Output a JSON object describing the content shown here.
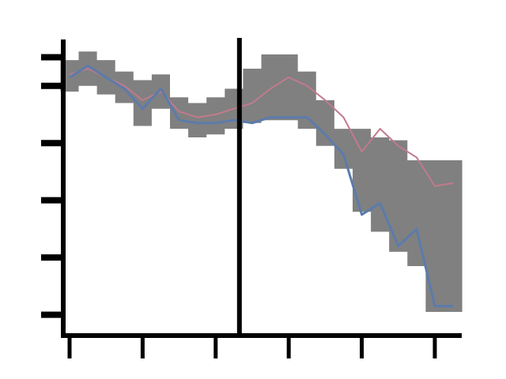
{
  "chart_data": {
    "type": "line",
    "title": "",
    "xlabel": "",
    "ylabel": "",
    "xlim": [
      0,
      21.3
    ],
    "ylim": [
      0.15,
      5.2
    ],
    "xticks": [
      0,
      4,
      8,
      12,
      16,
      20
    ],
    "yticks": [
      0.5,
      1.5,
      2.5,
      3.5,
      4.5,
      5.0
    ],
    "vertical_line_x": 9.3,
    "grid": false,
    "legend": "none",
    "colors": {
      "band": "#808080",
      "forecast_line": "#c07a8c",
      "observed_line": "#5b7bab",
      "axes": "#000000"
    },
    "series": [
      {
        "role": "confidence-band",
        "x": [
          0,
          1,
          2,
          3,
          4,
          5,
          6,
          7,
          8,
          9,
          10,
          11,
          12,
          13,
          14,
          15,
          16,
          17,
          18,
          19,
          20,
          21
        ],
        "lower": [
          4.4,
          4.5,
          4.35,
          4.2,
          3.8,
          4.1,
          3.75,
          3.6,
          3.65,
          3.75,
          3.85,
          3.9,
          3.9,
          3.75,
          3.45,
          3.05,
          2.3,
          1.95,
          1.6,
          1.35,
          0.55,
          0.55
        ],
        "upper": [
          4.95,
          5.1,
          4.95,
          4.75,
          4.6,
          4.7,
          4.3,
          4.2,
          4.3,
          4.45,
          4.8,
          5.05,
          5.05,
          4.75,
          4.25,
          3.75,
          3.75,
          3.6,
          3.55,
          3.2,
          3.2,
          3.2
        ]
      },
      {
        "role": "forecast-line",
        "x": [
          0,
          1,
          2,
          3,
          4,
          5,
          6,
          7,
          8,
          9,
          10,
          11,
          12,
          13,
          14,
          15,
          16,
          17,
          18,
          19,
          20,
          21
        ],
        "values": [
          4.7,
          4.8,
          4.65,
          4.5,
          4.25,
          4.4,
          4.05,
          3.95,
          4.0,
          4.1,
          4.2,
          4.45,
          4.65,
          4.5,
          4.25,
          3.95,
          3.35,
          3.75,
          3.45,
          3.25,
          2.75,
          2.8
        ]
      },
      {
        "role": "observed-line",
        "x": [
          0,
          1,
          2,
          3,
          4,
          5,
          6,
          7,
          8,
          9,
          10,
          11,
          12,
          13,
          14,
          15,
          16,
          17,
          18,
          19,
          20,
          21
        ],
        "values": [
          4.65,
          4.85,
          4.65,
          4.45,
          4.1,
          4.45,
          3.9,
          3.85,
          3.85,
          3.9,
          3.85,
          3.95,
          3.95,
          3.95,
          3.65,
          3.3,
          2.25,
          2.45,
          1.7,
          2.0,
          0.65,
          0.65
        ]
      }
    ]
  }
}
